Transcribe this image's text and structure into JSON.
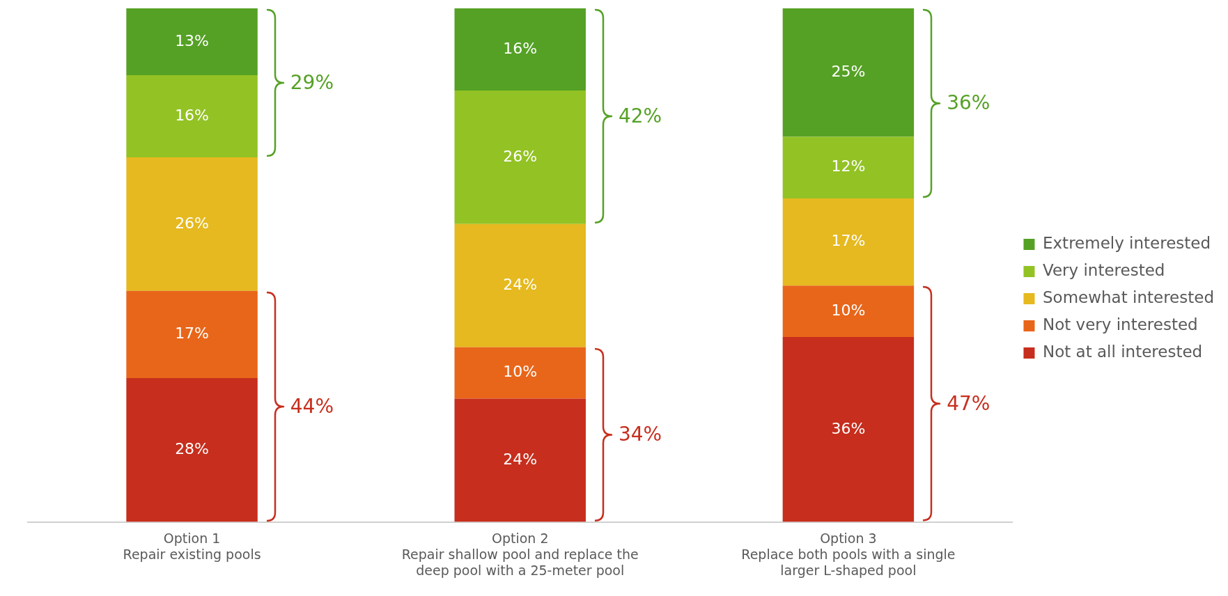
{
  "chart_data": {
    "type": "bar",
    "stacked": true,
    "tick_labels": "x",
    "grid": false,
    "legend": "right",
    "data_labels": true,
    "categories": [
      "Option 1\nRepair existing pools",
      "Option 2\nRepair shallow pool and replace the\ndeep pool with a 25-meter pool",
      "Option 3\nReplace both pools with a single\nlarger L-shaped pool"
    ],
    "series": [
      {
        "name": "Not at all interested",
        "color": "#c72e1d",
        "values": [
          28,
          24,
          36
        ],
        "value_labels": [
          "28%",
          "24%",
          "36%"
        ]
      },
      {
        "name": "Not very interested",
        "color": "#e8661a",
        "values": [
          17,
          10,
          10
        ],
        "value_labels": [
          "17%",
          "10%",
          "10%"
        ]
      },
      {
        "name": "Somewhat interested",
        "color": "#e5b91f",
        "values": [
          26,
          24,
          17
        ],
        "value_labels": [
          "26%",
          "24%",
          "17%"
        ]
      },
      {
        "name": "Very interested",
        "color": "#93c225",
        "values": [
          16,
          26,
          12
        ],
        "value_labels": [
          "16%",
          "26%",
          "12%"
        ]
      },
      {
        "name": "Extremely interested",
        "color": "#55a125",
        "values": [
          13,
          16,
          25
        ],
        "value_labels": [
          "13%",
          "16%",
          "25%"
        ]
      }
    ],
    "annotations": [
      "29%",
      "44%",
      "42%",
      "34%",
      "36%",
      "47%"
    ]
  }
}
